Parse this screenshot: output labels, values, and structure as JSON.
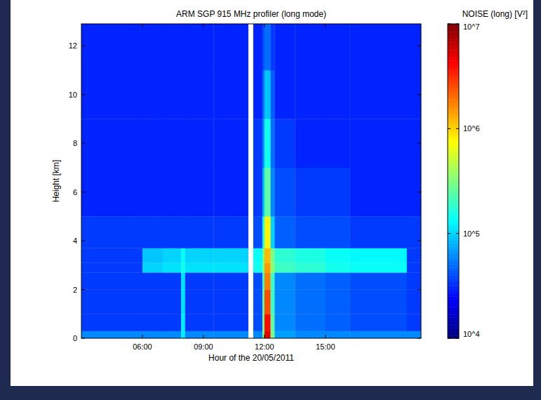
{
  "chart_data": {
    "type": "heatmap",
    "title": "ARM SGP 915 MHz profiler (long mode)",
    "x_label": "Hour of the 20/05/2011",
    "y_label": "Height [km]",
    "colorbar_label": "NOISE (long) [V²]",
    "xlim": [
      3.0,
      19.7
    ],
    "ylim": [
      0,
      12.9
    ],
    "xticks": [
      {
        "value": 6,
        "label": "06:00"
      },
      {
        "value": 9,
        "label": "09:00"
      },
      {
        "value": 12,
        "label": "12:00"
      },
      {
        "value": 15,
        "label": "15:00"
      }
    ],
    "yticks": [
      0,
      2,
      4,
      6,
      8,
      10,
      12
    ],
    "x_edges": [
      3.0,
      6.0,
      7.0,
      7.9,
      8.1,
      9.5,
      11.2,
      11.45,
      11.9,
      12.0,
      12.3,
      12.5,
      13.5,
      15.0,
      16.2,
      19.0,
      19.7
    ],
    "y_edges": [
      0,
      0.3,
      1,
      2,
      2.7,
      3.1,
      3.7,
      5,
      7,
      9,
      11,
      12.9
    ],
    "values": [
      [
        60000.0,
        60000.0,
        60000.0,
        120000.0,
        60000.0,
        60000.0,
        null,
        60000.0,
        300000.0,
        5000000.0,
        300000.0,
        70000.0,
        60000.0,
        60000.0,
        60000.0,
        60000.0
      ],
      [
        35000.0,
        35000.0,
        35000.0,
        120000.0,
        35000.0,
        35000.0,
        null,
        40000.0,
        300000.0,
        4000000.0,
        250000.0,
        60000.0,
        50000.0,
        45000.0,
        40000.0,
        35000.0
      ],
      [
        35000.0,
        35000.0,
        35000.0,
        110000.0,
        35000.0,
        35000.0,
        null,
        40000.0,
        250000.0,
        2500000.0,
        200000.0,
        60000.0,
        50000.0,
        45000.0,
        40000.0,
        35000.0
      ],
      [
        35000.0,
        35000.0,
        35000.0,
        110000.0,
        35000.0,
        35000.0,
        null,
        40000.0,
        200000.0,
        1800000.0,
        200000.0,
        60000.0,
        50000.0,
        45000.0,
        40000.0,
        35000.0
      ],
      [
        35000.0,
        100000.0,
        110000.0,
        150000.0,
        110000.0,
        110000.0,
        null,
        150000.0,
        300000.0,
        1500000.0,
        350000.0,
        200000.0,
        180000.0,
        150000.0,
        140000.0,
        35000.0
      ],
      [
        35000.0,
        90000.0,
        100000.0,
        140000.0,
        100000.0,
        100000.0,
        null,
        140000.0,
        300000.0,
        1200000.0,
        300000.0,
        180000.0,
        160000.0,
        140000.0,
        130000.0,
        35000.0
      ],
      [
        35000.0,
        35000.0,
        35000.0,
        35000.0,
        35000.0,
        35000.0,
        null,
        40000.0,
        150000.0,
        800000.0,
        100000.0,
        45000.0,
        40000.0,
        40000.0,
        35000.0,
        35000.0
      ],
      [
        30000.0,
        30000.0,
        30000.0,
        30000.0,
        30000.0,
        30000.0,
        null,
        35000.0,
        80000.0,
        250000.0,
        60000.0,
        40000.0,
        35000.0,
        35000.0,
        30000.0,
        30000.0
      ],
      [
        30000.0,
        30000.0,
        30000.0,
        30000.0,
        30000.0,
        30000.0,
        null,
        35000.0,
        60000.0,
        150000.0,
        50000.0,
        35000.0,
        30000.0,
        30000.0,
        30000.0,
        30000.0
      ],
      [
        30000.0,
        30000.0,
        30000.0,
        30000.0,
        30000.0,
        30000.0,
        null,
        30000.0,
        50000.0,
        90000.0,
        45000.0,
        30000.0,
        30000.0,
        30000.0,
        30000.0,
        30000.0
      ],
      [
        30000.0,
        30000.0,
        30000.0,
        30000.0,
        30000.0,
        30000.0,
        null,
        30000.0,
        40000.0,
        50000.0,
        35000.0,
        30000.0,
        30000.0,
        30000.0,
        30000.0,
        30000.0
      ]
    ],
    "colorbar_lim": [
      10000.0,
      10000000.0
    ],
    "colorbar_ticks": [
      {
        "value": 10000.0,
        "label": "10^4"
      },
      {
        "value": 100000.0,
        "label": "10^5"
      },
      {
        "value": 1000000.0,
        "label": "10^6"
      },
      {
        "value": 10000000.0,
        "label": "10^7"
      }
    ]
  }
}
